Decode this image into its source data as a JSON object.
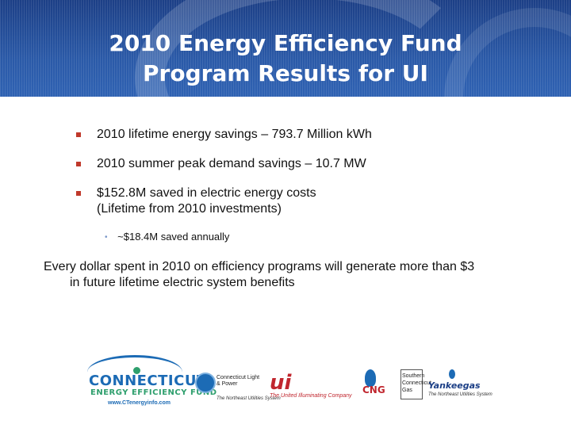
{
  "slide": {
    "title_line1": "2010 Energy Efficiency Fund",
    "title_line2": "Program Results for UI",
    "bullets": [
      {
        "text": "2010 lifetime energy savings – 793.7 Million kWh"
      },
      {
        "text": "2010 summer peak demand savings – 10.7 MW"
      },
      {
        "text": "$152.8M saved in electric energy costs",
        "text2": "(Lifetime from 2010 investments)"
      }
    ],
    "sub_bullet": {
      "marker": "•",
      "text": "~$18.4M saved annually"
    },
    "statement": {
      "line1": "Every dollar spent in 2010 on efficiency programs will generate more than $3",
      "line2": "in future lifetime electric system benefits"
    }
  },
  "logos": {
    "cef": {
      "name": "CONNECTICUT",
      "sub": "ENERGY EFFICIENCY FUND",
      "url": "www.CTenergyinfo.com"
    },
    "clp": {
      "name": "Connecticut Light & Power",
      "tag": "The Northeast Utilities System"
    },
    "ui": {
      "mark": "ui",
      "tag": "The United Illuminating Company"
    },
    "cng": {
      "name": "CNG"
    },
    "sg": {
      "lines": [
        "Southern",
        "Connecticut",
        "Gas"
      ]
    },
    "yankee": {
      "name": "Yankeegas",
      "tag": "The Northeast Utilities System"
    }
  },
  "colors": {
    "header_blue": "#2a59a7",
    "bullet_red": "#c0392b",
    "text": "#111111"
  }
}
